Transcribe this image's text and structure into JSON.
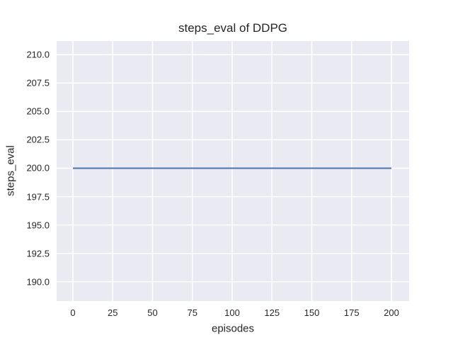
{
  "chart_data": {
    "type": "line",
    "title": "steps_eval of DDPG",
    "xlabel": "episodes",
    "ylabel": "steps_eval",
    "xlim": [
      -10.2,
      211.1
    ],
    "ylim": [
      188.3,
      211.2
    ],
    "xtick_values": [
      0,
      25,
      50,
      75,
      100,
      125,
      150,
      175,
      200
    ],
    "xtick_labels": [
      "0",
      "25",
      "50",
      "75",
      "100",
      "125",
      "150",
      "175",
      "200"
    ],
    "ytick_values": [
      190.0,
      192.5,
      195.0,
      197.5,
      200.0,
      202.5,
      205.0,
      207.5,
      210.0
    ],
    "ytick_labels": [
      "190.0",
      "192.5",
      "195.0",
      "197.5",
      "200.0",
      "202.5",
      "205.0",
      "207.5",
      "210.0"
    ],
    "grid": true,
    "legend_visible": false,
    "series": [
      {
        "name": "DDPG",
        "x": [
          0,
          200
        ],
        "y": [
          200,
          200
        ],
        "note": "constant steps_eval value of 200 across all episodes"
      }
    ],
    "style": {
      "figure_bg": "#ffffff",
      "axes_bg": "#eaeaf2",
      "grid_color": "#ffffff",
      "line_color": "#4c72b0",
      "text_color": "#262626"
    }
  }
}
